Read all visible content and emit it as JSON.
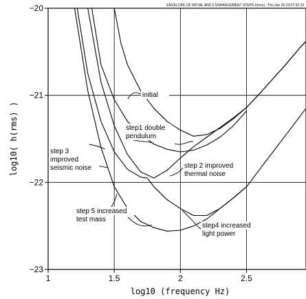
{
  "chart_data": {
    "type": "line",
    "title": "ENVELOPE OF INITIAL AND 5 ENHANCEMENT STEPS h(rms) : Thu Jan 29 23:07:33 19",
    "xlabel": "log10 (frequency Hz)",
    "ylabel": "log10( h(rms) )",
    "xlim": [
      1,
      2.95
    ],
    "ylim": [
      -23,
      -20
    ],
    "xticks": [
      1,
      1.5,
      2,
      2.5
    ],
    "xtick_labels": [
      "1",
      "1.5",
      "2",
      "2.5"
    ],
    "yticks": [
      -23,
      -22,
      -21,
      -20
    ],
    "ytick_labels": [
      "−23",
      "−22",
      "−21",
      "−20"
    ],
    "grid": true,
    "series": [
      {
        "name": "initial",
        "points": [
          [
            1.5,
            -20.0
          ],
          [
            1.55,
            -20.4
          ],
          [
            1.6,
            -20.65
          ],
          [
            1.7,
            -20.95
          ],
          [
            1.8,
            -21.15
          ],
          [
            1.9,
            -21.3
          ],
          [
            2.0,
            -21.4
          ],
          [
            2.1,
            -21.47
          ],
          [
            2.2,
            -21.45
          ],
          [
            2.3,
            -21.38
          ],
          [
            2.4,
            -21.27
          ],
          [
            2.5,
            -21.14
          ],
          [
            2.6,
            -20.98
          ],
          [
            2.7,
            -20.81
          ],
          [
            2.8,
            -20.64
          ],
          [
            2.9,
            -20.46
          ],
          [
            2.95,
            -20.38
          ]
        ]
      },
      {
        "name": "step1 double pendulum",
        "points": [
          [
            1.33,
            -20.0
          ],
          [
            1.4,
            -20.65
          ],
          [
            1.5,
            -21.05
          ],
          [
            1.6,
            -21.3
          ],
          [
            1.7,
            -21.45
          ],
          [
            1.8,
            -21.56
          ],
          [
            1.9,
            -21.62
          ],
          [
            2.0,
            -21.65
          ],
          [
            2.1,
            -21.63
          ],
          [
            2.2,
            -21.57
          ],
          [
            2.3,
            -21.48
          ],
          [
            2.4,
            -21.35
          ],
          [
            2.5,
            -21.18
          ]
        ]
      },
      {
        "name": "step 2 improved thermal noise",
        "points": [
          [
            1.3,
            -20.0
          ],
          [
            1.4,
            -20.85
          ],
          [
            1.5,
            -21.35
          ],
          [
            1.6,
            -21.68
          ],
          [
            1.7,
            -21.88
          ],
          [
            1.8,
            -21.95
          ],
          [
            1.9,
            -21.86
          ],
          [
            2.0,
            -21.72
          ],
          [
            2.1,
            -21.59
          ],
          [
            2.2,
            -21.48
          ],
          [
            2.3,
            -21.37
          ],
          [
            2.4,
            -21.26
          ],
          [
            2.5,
            -21.14
          ],
          [
            2.6,
            -20.98
          ],
          [
            2.7,
            -20.81
          ],
          [
            2.8,
            -20.64
          ],
          [
            2.9,
            -20.46
          ],
          [
            2.95,
            -20.38
          ]
        ]
      },
      {
        "name": "step 3 improved seismic noise",
        "points": [
          [
            1.22,
            -20.0
          ],
          [
            1.3,
            -20.75
          ],
          [
            1.4,
            -21.3
          ],
          [
            1.5,
            -21.65
          ],
          [
            1.6,
            -21.85
          ],
          [
            1.7,
            -21.94
          ],
          [
            1.75,
            -21.95
          ]
        ]
      },
      {
        "name": "step4 increased light power",
        "points": [
          [
            1.75,
            -21.95
          ],
          [
            1.8,
            -22.05
          ],
          [
            1.9,
            -22.2
          ],
          [
            2.0,
            -22.3
          ],
          [
            2.1,
            -22.38
          ],
          [
            2.2,
            -22.38
          ],
          [
            2.3,
            -22.3
          ],
          [
            2.4,
            -22.18
          ],
          [
            2.5,
            -22.05
          ],
          [
            2.6,
            -21.85
          ],
          [
            2.7,
            -21.65
          ],
          [
            2.8,
            -21.45
          ],
          [
            2.9,
            -21.25
          ],
          [
            2.95,
            -21.15
          ]
        ]
      },
      {
        "name": "step 5 increased test mass",
        "points": [
          [
            1.2,
            -20.0
          ],
          [
            1.3,
            -20.95
          ],
          [
            1.4,
            -21.6
          ],
          [
            1.5,
            -22.05
          ],
          [
            1.6,
            -22.3
          ],
          [
            1.7,
            -22.45
          ],
          [
            1.8,
            -22.52
          ],
          [
            1.9,
            -22.56
          ],
          [
            2.0,
            -22.55
          ],
          [
            2.1,
            -22.5
          ],
          [
            2.2,
            -22.42
          ],
          [
            2.3,
            -22.3
          ],
          [
            2.4,
            -22.18
          ],
          [
            2.5,
            -22.05
          ]
        ]
      }
    ],
    "annotations": [
      {
        "lines": [
          "initial"
        ]
      },
      {
        "lines": [
          "step1 double",
          "pendulum"
        ]
      },
      {
        "lines": [
          "step 2 improved",
          "thermal noise"
        ]
      },
      {
        "lines": [
          "step 3",
          "improved",
          "seismic noise"
        ]
      },
      {
        "lines": [
          "step 5 increased",
          "test mass"
        ]
      },
      {
        "lines": [
          "step4 increased",
          "light power"
        ]
      }
    ]
  }
}
